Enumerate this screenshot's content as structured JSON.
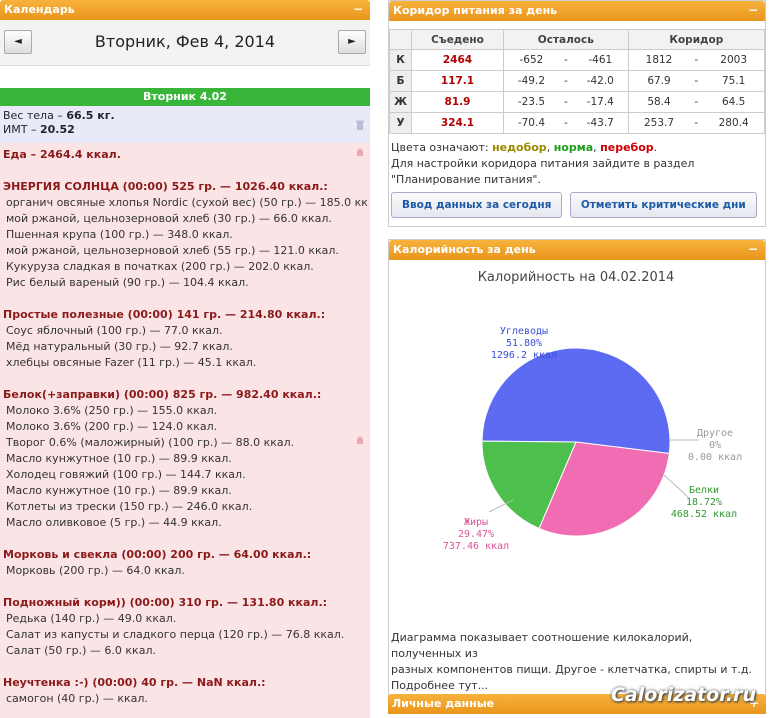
{
  "calendar": {
    "header": "Календарь",
    "toggle": "−",
    "prev": "◄",
    "next": "►",
    "date": "Вторник, Фев 4, 2014",
    "day_bar": "Вторник 4.02",
    "weight_label": "Вес тела",
    "weight_value": "66.5 кг.",
    "bmi_label": "ИМТ",
    "bmi_value": "20.52",
    "food_label": "Еда",
    "food_value": "2464.4 ккал.",
    "meals": [
      {
        "title": "ЭНЕРГИЯ СОЛНЦА (00:00) 525 гр.",
        "total": "1026.40 ккал.:",
        "items": [
          "органич овсяные хлопья Nordic (сухой вес) (50 гр.) — 185.0 ккал.",
          "мой ржаной, цельнозерновой хлеб (30 гр.) — 66.0 ккал.",
          "Пшенная крупа (100 гр.) — 348.0 ккал.",
          "мой ржаной, цельнозерновой хлеб (55 гр.) — 121.0 ккал.",
          "Кукуруза сладкая в початках (200 гр.) — 202.0 ккал.",
          "Рис белый вареный (90 гр.) — 104.4 ккал."
        ]
      },
      {
        "title": "Простые полезные (00:00) 141 гр.",
        "total": "214.80 ккал.:",
        "items": [
          "Соус яблочный (100 гр.) — 77.0 ккал.",
          "Мёд натуральный (30 гр.) — 92.7 ккал.",
          "хлебцы овсяные Fazer (11 гр.) — 45.1 ккал."
        ]
      },
      {
        "title": "Белок(+заправки) (00:00) 825 гр.",
        "total": "982.40 ккал.:",
        "items": [
          "Молоко 3.6% (250 гр.) — 155.0 ккал.",
          "Молоко 3.6% (200 гр.) — 124.0 ккал.",
          "Творог 0.6% (маложирный) (100 гр.) — 88.0 ккал.",
          "Масло кунжутное (10 гр.) — 89.9 ккал.",
          "Холодец говяжий (100 гр.) — 144.7 ккал.",
          "Масло кунжутное (10 гр.) — 89.9 ккал.",
          "Котлеты из трески (150 гр.) — 246.0 ккал.",
          "Масло оливковое (5 гр.) — 44.9 ккал."
        ]
      },
      {
        "title": "Морковь и свекла (00:00) 200 гр.",
        "total": "64.00 ккал.:",
        "items": [
          "Морковь (200 гр.) — 64.0 ккал."
        ]
      },
      {
        "title": "Подножный корм)) (00:00) 310 гр.",
        "total": "131.80 ккал.:",
        "items": [
          "Редька (140 гр.) — 49.0 ккал.",
          "Салат из капусты и сладкого перца (120 гр.) — 76.8 ккал.",
          "Салат (50 гр.) — 6.0 ккал."
        ]
      },
      {
        "title": "Неучтенка :-) (00:00) 40 гр.",
        "total": "NaN ккал.:",
        "items": [
          "самогон (40 гр.) — ккал."
        ]
      }
    ]
  },
  "corridor": {
    "header": "Коридор питания за день",
    "toggle": "−",
    "columns": [
      "",
      "Съедено",
      "Осталось",
      "Коридор"
    ],
    "rows": [
      {
        "label": "К",
        "eaten": "2464",
        "left_min": "-652",
        "left_max": "-461",
        "c_min": "1812",
        "c_max": "2003"
      },
      {
        "label": "Б",
        "eaten": "117.1",
        "left_min": "-49.2",
        "left_max": "-42.0",
        "c_min": "67.9",
        "c_max": "75.1"
      },
      {
        "label": "Ж",
        "eaten": "81.9",
        "left_min": "-23.5",
        "left_max": "-17.4",
        "c_min": "58.4",
        "c_max": "64.5"
      },
      {
        "label": "У",
        "eaten": "324.1",
        "left_min": "-70.4",
        "left_max": "-43.7",
        "c_min": "253.7",
        "c_max": "280.4"
      }
    ],
    "sep": "-",
    "legend_prefix": "Цвета означают:",
    "legend_under": "недобор",
    "legend_norm": "норма",
    "legend_over": "перебор",
    "hint1": "Для настройки коридора питания зайдите в раздел",
    "hint2": "\"Планирование питания\".",
    "btn_input": "Ввод данных за сегодня",
    "btn_critical": "Отметить критические дни"
  },
  "calories": {
    "header": "Калорийность за день",
    "toggle": "−",
    "desc1": "Диаграмма показывает соотношение килокалорий, полученных из",
    "desc2": "разных компонентов пищи. Другое - клетчатка, спирты и т.д.",
    "desc3": "Подробнее тут..."
  },
  "chart_data": {
    "type": "pie",
    "title": "Калорийность на 04.02.2014",
    "slices": [
      {
        "name": "Углеводы",
        "percent": "51.80%",
        "kcal": "1296.2 ккал",
        "value": 51.8,
        "color": "#5c6bf2"
      },
      {
        "name": "Другое",
        "percent": "0%",
        "kcal": "0.00 ккал",
        "value": 0.0,
        "color": "#aaaaaa"
      },
      {
        "name": "Белки",
        "percent": "18.72%",
        "kcal": "468.52 ккал",
        "value": 18.72,
        "color": "#4cbf4c"
      },
      {
        "name": "Жиры",
        "percent": "29.47%",
        "kcal": "737.46 ккал",
        "value": 29.47,
        "color": "#f06db3"
      }
    ]
  },
  "personal": {
    "header": "Личные данные",
    "toggle": "+"
  },
  "watermark": "Calorizator.ru"
}
